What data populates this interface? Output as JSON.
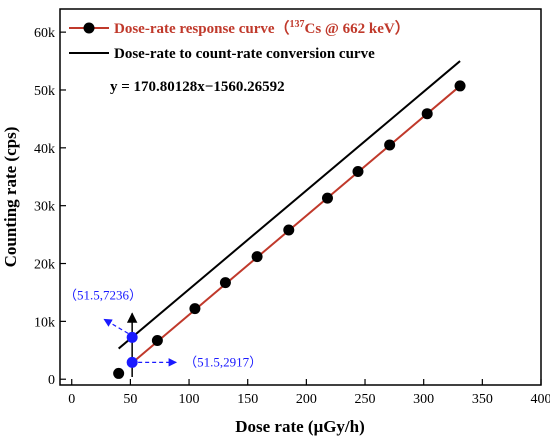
{
  "chart_data": {
    "type": "line",
    "xlabel": "Dose rate (μGy/h)",
    "ylabel": "Counting rate (cps)",
    "xlim": [
      -10,
      400
    ],
    "ylim": [
      -1000,
      64000
    ],
    "xticks": [
      0,
      50,
      100,
      150,
      200,
      250,
      300,
      350,
      400
    ],
    "xtick_labels": [
      "0",
      "50",
      "100",
      "150",
      "200",
      "250",
      "300",
      "350",
      "400"
    ],
    "yticks": [
      0,
      10000,
      20000,
      30000,
      40000,
      50000,
      60000
    ],
    "ytick_labels": [
      "0",
      "10k",
      "20k",
      "30k",
      "40k",
      "50k",
      "60k"
    ],
    "grid": false,
    "legend_position": "top-left",
    "series": [
      {
        "name": "Dose-rate response curve（137Cs @ 662 keV）",
        "legend_prefix": "Dose-rate response curve（",
        "legend_sup": "137",
        "legend_suffix": "Cs @ 662 keV）",
        "style": "points-with-fit",
        "marker_color": "#000000",
        "line_color": "#c0392b",
        "x": [
          40,
          52,
          73,
          105,
          131,
          158,
          185,
          218,
          244,
          271,
          303,
          331
        ],
        "y": [
          1000,
          2917,
          6700,
          12200,
          16700,
          21200,
          25800,
          31300,
          35900,
          40500,
          45900,
          50700
        ]
      },
      {
        "name": "Dose-rate to count-rate conversion curve",
        "style": "line",
        "line_color": "#000000",
        "x": [
          40,
          331
        ],
        "y": [
          5300,
          55000
        ]
      }
    ],
    "equation": "y = 170.80128x−1560.26592",
    "annotations": [
      {
        "label": "（51.5,7236）",
        "x": 51.5,
        "y": 7236,
        "color": "#1a1aff"
      },
      {
        "label": "（51.5,2917）",
        "x": 51.5,
        "y": 2917,
        "color": "#1a1aff"
      }
    ],
    "colors": {
      "highlight": "#1a1aff",
      "fit": "#c0392b",
      "axis": "#000000"
    }
  }
}
